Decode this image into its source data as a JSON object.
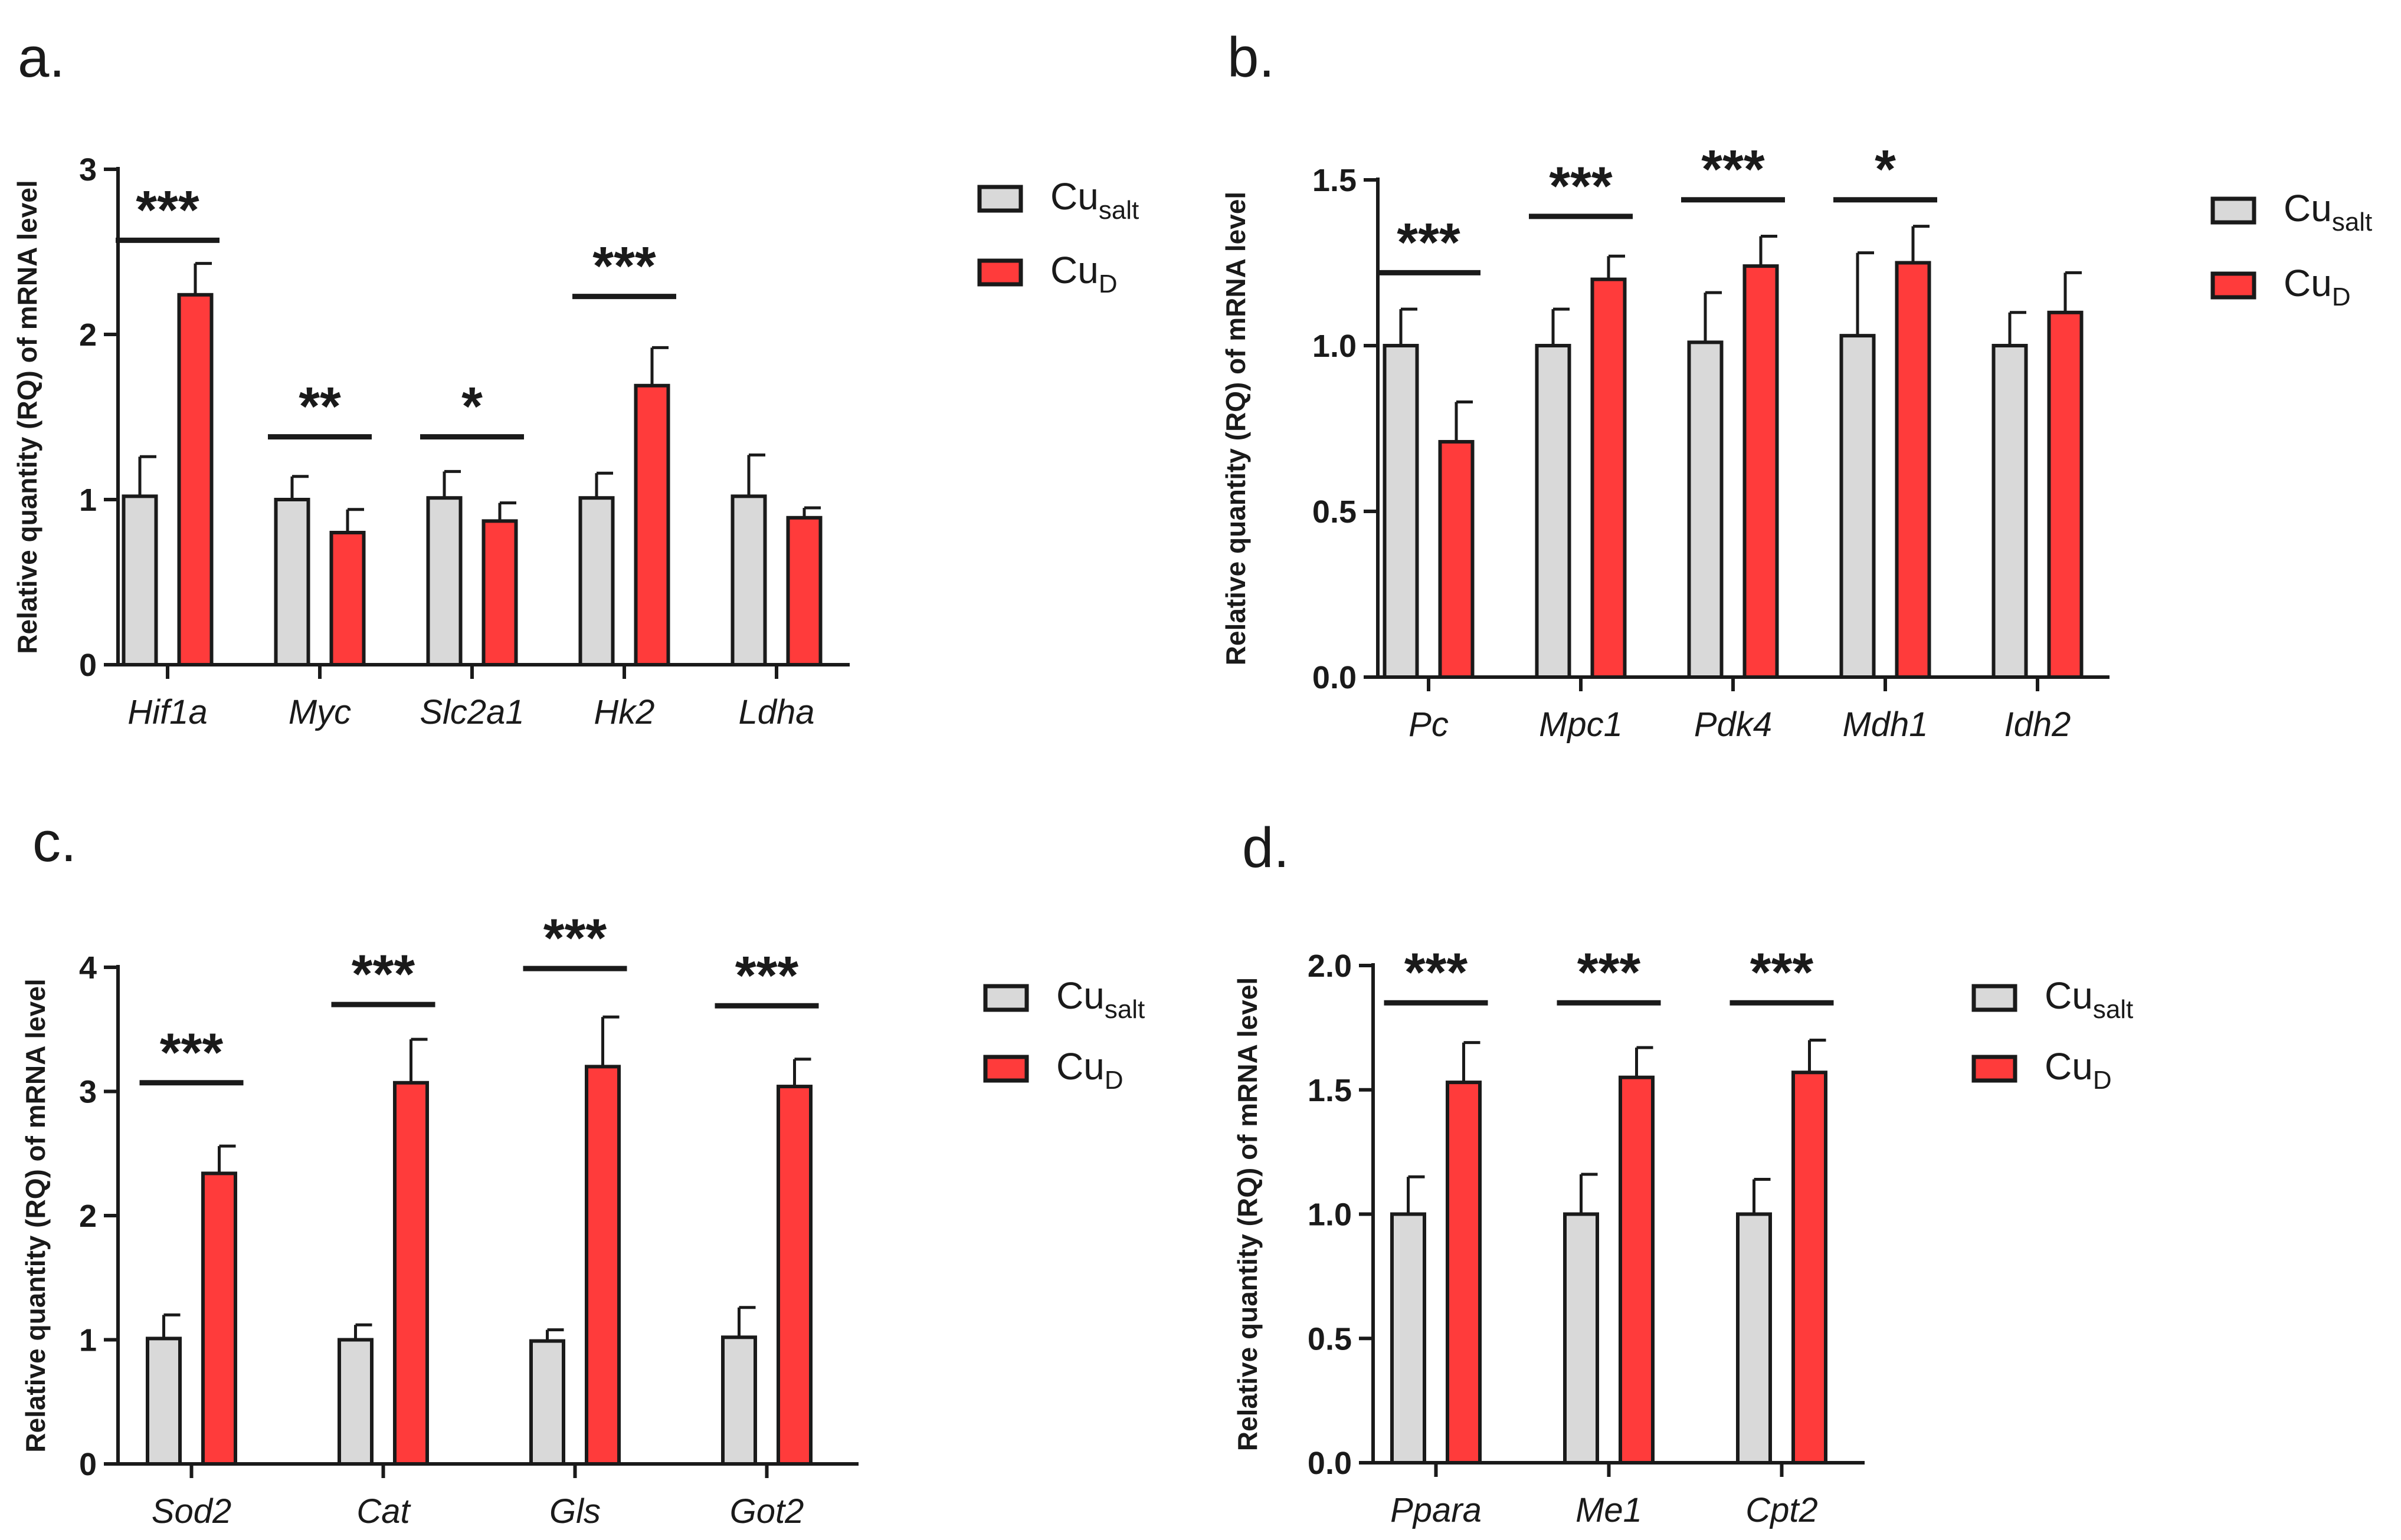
{
  "figure": {
    "legend_entries": [
      {
        "base": "Cu",
        "sub": "salt"
      },
      {
        "base": "Cu",
        "sub": "D"
      }
    ],
    "colors": {
      "cusalt": "#d9d9d9",
      "cud": "#ff3b3b",
      "axis": "#1a1a1a"
    }
  },
  "chart_data": [
    {
      "panel": "a.",
      "type": "bar",
      "ylabel": "Relative quantity (RQ) of mRNA level",
      "ylim": [
        0,
        3
      ],
      "yticks": [
        "0",
        "1",
        "2",
        "3"
      ],
      "categories": [
        "Hif1a",
        "Myc",
        "Slc2a1",
        "Hk2",
        "Ldha"
      ],
      "series": [
        {
          "name": "Cu_salt",
          "values": [
            1.02,
            1.0,
            1.01,
            1.01,
            1.02
          ],
          "errors": [
            0.24,
            0.14,
            0.16,
            0.15,
            0.25
          ]
        },
        {
          "name": "Cu_D",
          "values": [
            2.24,
            0.8,
            0.87,
            1.69,
            0.89
          ],
          "errors": [
            0.19,
            0.14,
            0.11,
            0.23,
            0.06
          ]
        }
      ],
      "significance": [
        "***",
        "**",
        "*",
        "***",
        ""
      ],
      "sig_y": [
        2.57,
        1.38,
        1.38,
        2.23,
        null
      ]
    },
    {
      "panel": "b.",
      "type": "bar",
      "ylabel": "Relative quantity (RQ) of mRNA level",
      "ylim": [
        0,
        1.5
      ],
      "yticks": [
        "0.0",
        "0.5",
        "1.0",
        "1.5"
      ],
      "categories": [
        "Pc",
        "Mpc1",
        "Pdk4",
        "Mdh1",
        "Idh2"
      ],
      "series": [
        {
          "name": "Cu_salt",
          "values": [
            1.0,
            1.0,
            1.01,
            1.03,
            1.0
          ],
          "errors": [
            0.11,
            0.11,
            0.15,
            0.25,
            0.1
          ]
        },
        {
          "name": "Cu_D",
          "values": [
            0.71,
            1.2,
            1.24,
            1.25,
            1.1
          ],
          "errors": [
            0.12,
            0.07,
            0.09,
            0.11,
            0.12
          ]
        }
      ],
      "significance": [
        "***",
        "***",
        "***",
        "*",
        ""
      ],
      "sig_y": [
        1.22,
        1.39,
        1.44,
        1.44,
        null
      ]
    },
    {
      "panel": "c.",
      "type": "bar",
      "ylabel": "Relative quantity (RQ) of mRNA level",
      "ylim": [
        0,
        4
      ],
      "yticks": [
        "0",
        "1",
        "2",
        "3",
        "4"
      ],
      "categories": [
        "Sod2",
        "Cat",
        "Gls",
        "Got2"
      ],
      "series": [
        {
          "name": "Cu_salt",
          "values": [
            1.01,
            1.0,
            0.99,
            1.02
          ],
          "errors": [
            0.19,
            0.12,
            0.09,
            0.24
          ]
        },
        {
          "name": "Cu_D",
          "values": [
            2.34,
            3.07,
            3.2,
            3.04
          ],
          "errors": [
            0.22,
            0.35,
            0.4,
            0.22
          ]
        }
      ],
      "significance": [
        "***",
        "***",
        "***",
        "***"
      ],
      "sig_y": [
        3.07,
        3.7,
        3.99,
        3.69
      ]
    },
    {
      "panel": "d.",
      "type": "bar",
      "ylabel": "Relative quantity (RQ) of mRNA level",
      "ylim": [
        0,
        2
      ],
      "yticks": [
        "0.0",
        "0.5",
        "1.0",
        "1.5",
        "2.0"
      ],
      "categories": [
        "Ppara",
        "Me1",
        "Cpt2"
      ],
      "series": [
        {
          "name": "Cu_salt",
          "values": [
            1.0,
            1.0,
            1.0
          ],
          "errors": [
            0.15,
            0.16,
            0.14
          ]
        },
        {
          "name": "Cu_D",
          "values": [
            1.53,
            1.55,
            1.57
          ],
          "errors": [
            0.16,
            0.12,
            0.13
          ]
        }
      ],
      "significance": [
        "***",
        "***",
        "***"
      ],
      "sig_y": [
        1.85,
        1.85,
        1.85
      ]
    }
  ]
}
